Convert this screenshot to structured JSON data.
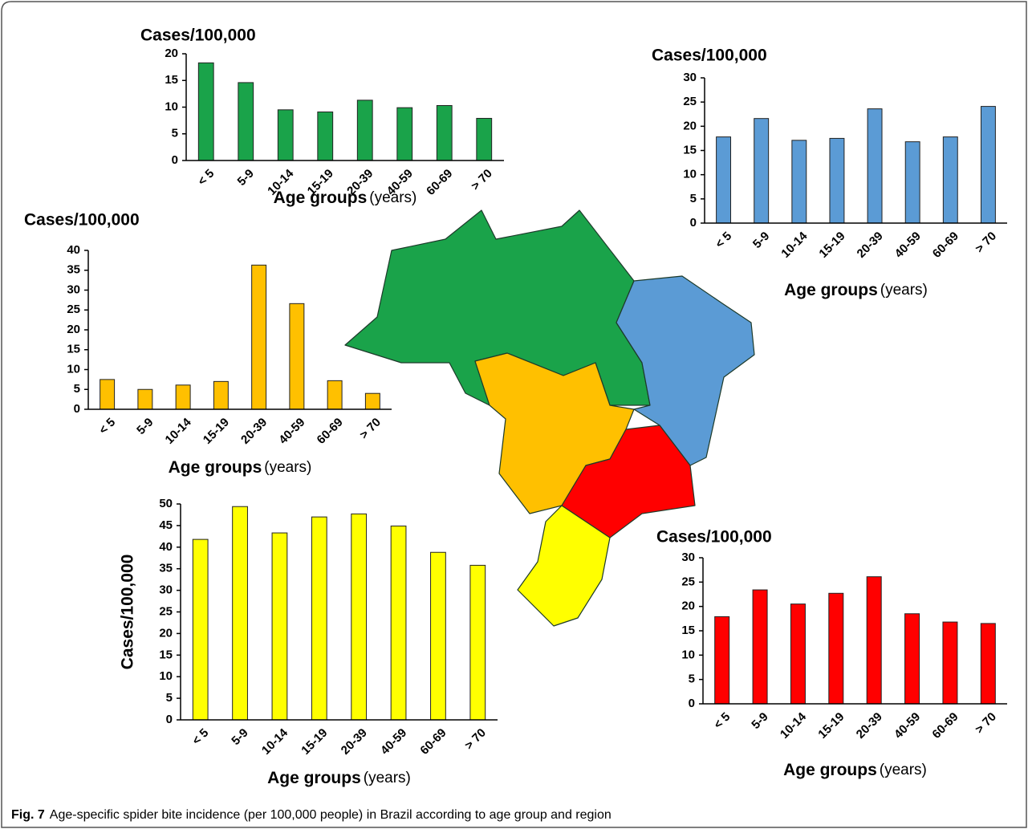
{
  "chart_data": [
    {
      "type": "bar",
      "title": "Cases/100,000",
      "xlabel": "Age groups",
      "xlabel_unit": "(years)",
      "color": "#1aa34a",
      "categories": [
        "< 5",
        "5-9",
        "10-14",
        "15-19",
        "20-39",
        "40-59",
        "60-69",
        "> 70"
      ],
      "values": [
        18.3,
        14.6,
        9.5,
        9.1,
        11.3,
        9.9,
        10.3,
        7.9
      ],
      "ylim": [
        0,
        20
      ],
      "yticks": [
        0,
        5,
        10,
        15,
        20
      ]
    },
    {
      "type": "bar",
      "title": "Cases/100,000",
      "xlabel": "Age groups",
      "xlabel_unit": "(years)",
      "color": "#5b9bd5",
      "categories": [
        "< 5",
        "5-9",
        "10-14",
        "15-19",
        "20-39",
        "40-59",
        "60-69",
        "> 70"
      ],
      "values": [
        17.8,
        21.6,
        17.1,
        17.5,
        23.6,
        16.8,
        17.8,
        24.1
      ],
      "ylim": [
        0,
        30
      ],
      "yticks": [
        0,
        5,
        10,
        15,
        20,
        25,
        30
      ]
    },
    {
      "type": "bar",
      "title": "Cases/100,000",
      "xlabel": "Age groups",
      "xlabel_unit": "(years)",
      "color": "#ffc000",
      "categories": [
        "< 5",
        "5-9",
        "10-14",
        "15-19",
        "20-39",
        "40-59",
        "60-69",
        "> 70"
      ],
      "values": [
        7.5,
        5,
        6.1,
        7,
        36.3,
        26.6,
        7.2,
        4
      ],
      "ylim": [
        0,
        40
      ],
      "yticks": [
        0,
        5,
        10,
        15,
        20,
        25,
        30,
        35,
        40
      ]
    },
    {
      "type": "bar",
      "ylabel": "Cases/100,000",
      "xlabel": "Age groups",
      "xlabel_unit": "(years)",
      "color": "#ffff00",
      "categories": [
        "< 5",
        "5-9",
        "10-14",
        "15-19",
        "20-39",
        "40-59",
        "60-69",
        "> 70"
      ],
      "values": [
        41.8,
        49.4,
        43.3,
        47,
        47.7,
        44.9,
        38.8,
        35.8
      ],
      "ylim": [
        0,
        50
      ],
      "yticks": [
        0,
        5,
        10,
        15,
        20,
        25,
        30,
        35,
        40,
        45,
        50
      ]
    },
    {
      "type": "bar",
      "title": "Cases/100,000",
      "xlabel": "Age groups",
      "xlabel_unit": "(years)",
      "color": "#ff0000",
      "categories": [
        "< 5",
        "5-9",
        "10-14",
        "15-19",
        "20-39",
        "40-59",
        "60-69",
        "> 70"
      ],
      "values": [
        17.9,
        23.4,
        20.5,
        22.7,
        26.1,
        18.5,
        16.8,
        16.5
      ],
      "ylim": [
        0,
        30
      ],
      "yticks": [
        0,
        5,
        10,
        15,
        20,
        25,
        30
      ]
    }
  ],
  "caption": {
    "label": "Fig. 7",
    "text": "Age-specific spider bite incidence (per 100,000 people) in Brazil according to age group and region"
  }
}
